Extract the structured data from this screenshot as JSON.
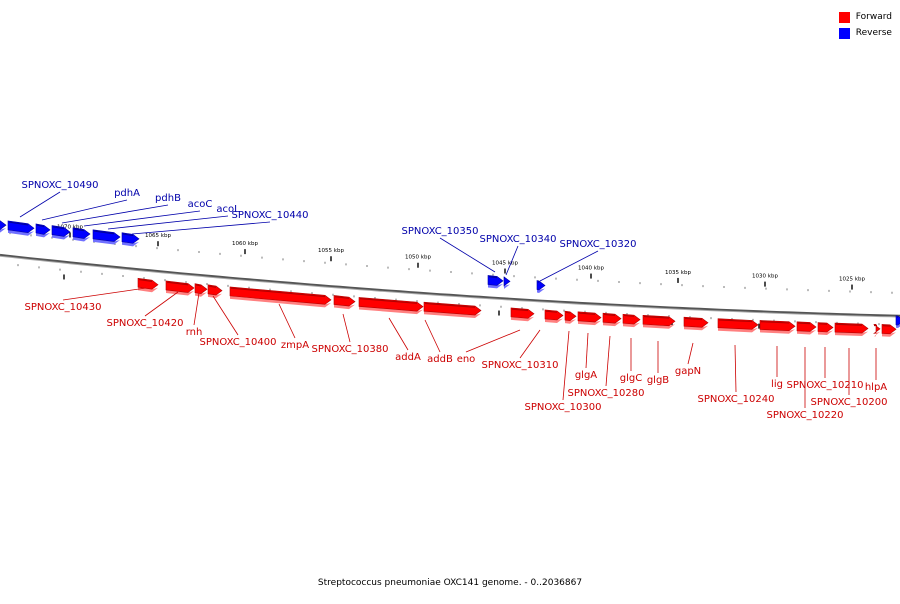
{
  "legend": [
    {
      "label": "Forward",
      "color": "#ff0000"
    },
    {
      "label": "Reverse",
      "color": "#0000ff"
    }
  ],
  "caption": "Streptococcus pneumoniae OXC141 genome. - 0..2036867",
  "colors": {
    "forward": "#ff0000",
    "forward_dark": "#b30000",
    "forward_light": "#ff8080",
    "reverse": "#0000ff",
    "reverse_dark": "#0000a0",
    "reverse_light": "#7070ff",
    "axis": "#8a8a8a",
    "forward_label": "#cc0000",
    "reverse_label": "#0000aa"
  },
  "ticks": [
    "1070 kbp",
    "1065 kbp",
    "1060 kbp",
    "1055 kbp",
    "1050 kbp",
    "1045 kbp",
    "1040 kbp",
    "1035 kbp",
    "1030 kbp",
    "1025 kbp"
  ],
  "forward_genes": [
    "SPNOXC_10430",
    "SPNOXC_10420",
    "rnh",
    "SPNOXC_10400",
    "zmpA",
    "SPNOXC_10380",
    "addA",
    "addB",
    "eno",
    "SPNOXC_10310",
    "SPNOXC_10300",
    "glgA",
    "SPNOXC_10280",
    "glgC",
    "glgB",
    "gapN",
    "SPNOXC_10240",
    "lig",
    "SPNOXC_10220",
    "SPNOXC_10210",
    "SPNOXC_10200",
    "hlpA"
  ],
  "reverse_genes": [
    "SPNOXC_10490",
    "pdhA",
    "pdhB",
    "acoC",
    "acoL",
    "SPNOXC_10440",
    "SPNOXC_10350",
    "SPNOXC_10340",
    "SPNOXC_10320"
  ]
}
